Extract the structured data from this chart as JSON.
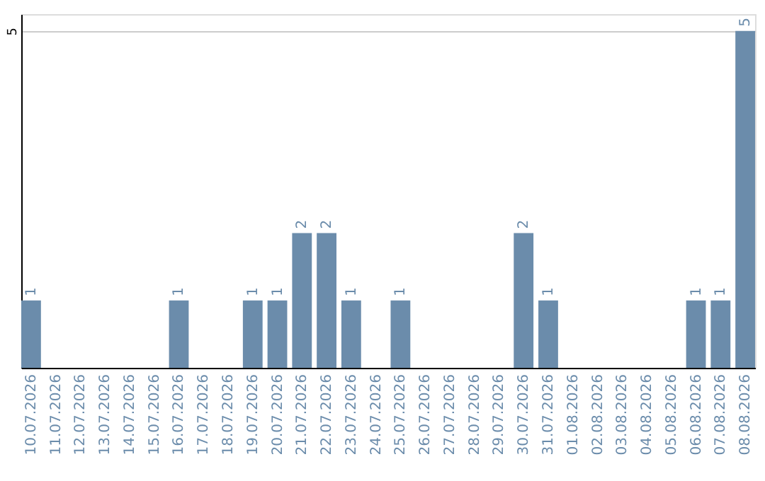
{
  "chart_data": {
    "type": "bar",
    "categories": [
      "10.07.2026",
      "11.07.2026",
      "12.07.2026",
      "13.07.2026",
      "14.07.2026",
      "15.07.2026",
      "16.07.2026",
      "17.07.2026",
      "18.07.2026",
      "19.07.2026",
      "20.07.2026",
      "21.07.2026",
      "22.07.2026",
      "23.07.2026",
      "24.07.2026",
      "25.07.2026",
      "26.07.2026",
      "27.07.2026",
      "28.07.2026",
      "29.07.2026",
      "30.07.2026",
      "31.07.2026",
      "01.08.2026",
      "02.08.2026",
      "03.08.2026",
      "04.08.2026",
      "05.08.2026",
      "06.08.2026",
      "07.08.2026",
      "08.08.2026"
    ],
    "values": [
      1,
      0,
      0,
      0,
      0,
      0,
      1,
      0,
      0,
      1,
      1,
      2,
      2,
      1,
      0,
      1,
      0,
      0,
      0,
      0,
      2,
      1,
      0,
      0,
      0,
      0,
      0,
      1,
      1,
      5
    ],
    "value_labels": [
      "1",
      null,
      null,
      null,
      null,
      null,
      "1",
      null,
      null,
      "1",
      "1",
      "2",
      "2",
      "1",
      null,
      "1",
      null,
      null,
      null,
      null,
      "2",
      "1",
      null,
      null,
      null,
      null,
      null,
      "1",
      "1",
      "5"
    ],
    "color": "#6b8cab",
    "ylim": [
      0,
      5.25
    ],
    "yticks": [
      5
    ],
    "grid": "y"
  }
}
